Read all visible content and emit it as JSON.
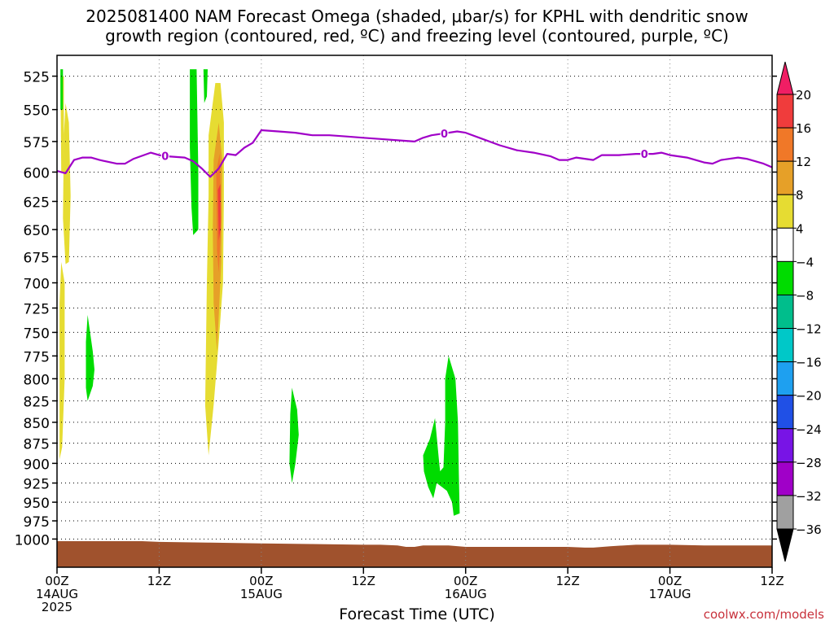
{
  "title_line1": "2025081400 NAM Forecast Omega (shaded, μbar/s) for KPHL with dendritic snow",
  "title_line2": "growth region (contoured, red, ºC) and freezing level (contoured, purple, ºC)",
  "credit": "coolwx.com/models",
  "chart_data": {
    "type": "heatmap",
    "xlabel": "Forecast Time (UTC)",
    "x_range_hours": [
      0,
      84
    ],
    "x_ticks": [
      {
        "hour": 0,
        "label": "00Z",
        "date": "14AUG",
        "year": "2025"
      },
      {
        "hour": 12,
        "label": "12Z"
      },
      {
        "hour": 24,
        "label": "00Z",
        "date": "15AUG"
      },
      {
        "hour": 36,
        "label": "12Z"
      },
      {
        "hour": 48,
        "label": "00Z",
        "date": "16AUG"
      },
      {
        "hour": 60,
        "label": "12Z"
      },
      {
        "hour": 72,
        "label": "00Z",
        "date": "17AUG"
      },
      {
        "hour": 84,
        "label": "12Z"
      }
    ],
    "y_range_mb": [
      1040,
      510
    ],
    "y_ticks": [
      525,
      550,
      575,
      600,
      625,
      650,
      675,
      700,
      725,
      750,
      775,
      800,
      825,
      850,
      875,
      900,
      925,
      950,
      975,
      1000
    ],
    "grid": true,
    "colorbar": {
      "labels": [
        "20",
        "16",
        "12",
        "8",
        "4",
        "−4",
        "−8",
        "−12",
        "−16",
        "−20",
        "−24",
        "−28",
        "−32",
        "−36"
      ],
      "colors": [
        "#f01e64",
        "#f03c3c",
        "#f07828",
        "#e6a028",
        "#e6dc32",
        "#ffffff",
        "#00dc00",
        "#00be8c",
        "#00c8c8",
        "#1ea0f0",
        "#2050e6",
        "#7814e6",
        "#a000c8",
        "#a0a0a0",
        "#000000"
      ]
    },
    "freezing_level": {
      "color": "#a000c8",
      "label": "0",
      "points": [
        [
          0,
          599
        ],
        [
          1,
          601
        ],
        [
          2,
          590
        ],
        [
          3,
          588
        ],
        [
          4,
          588
        ],
        [
          5,
          590
        ],
        [
          7,
          593
        ],
        [
          8,
          593
        ],
        [
          9,
          589
        ],
        [
          11,
          584
        ],
        [
          12,
          586
        ],
        [
          13,
          587
        ],
        [
          15,
          588
        ],
        [
          16,
          591
        ],
        [
          17,
          597
        ],
        [
          18,
          604
        ],
        [
          19,
          597
        ],
        [
          20,
          585
        ],
        [
          21,
          586
        ],
        [
          22,
          580
        ],
        [
          23,
          576
        ],
        [
          24,
          566
        ],
        [
          26,
          567
        ],
        [
          28,
          568
        ],
        [
          30,
          570
        ],
        [
          32,
          570
        ],
        [
          34,
          571
        ],
        [
          36,
          572
        ],
        [
          38,
          573
        ],
        [
          40,
          574
        ],
        [
          42,
          575
        ],
        [
          43,
          572
        ],
        [
          44,
          570
        ],
        [
          46,
          568
        ],
        [
          47,
          567
        ],
        [
          48,
          568
        ],
        [
          50,
          573
        ],
        [
          52,
          578
        ],
        [
          54,
          582
        ],
        [
          56,
          584
        ],
        [
          58,
          587
        ],
        [
          59,
          590
        ],
        [
          60,
          590
        ],
        [
          61,
          588
        ],
        [
          63,
          590
        ],
        [
          64,
          586
        ],
        [
          66,
          586
        ],
        [
          68,
          585
        ],
        [
          69,
          585
        ],
        [
          70,
          585
        ],
        [
          71,
          584
        ],
        [
          72,
          586
        ],
        [
          74,
          588
        ],
        [
          76,
          592
        ],
        [
          77,
          593
        ],
        [
          78,
          590
        ],
        [
          80,
          588
        ],
        [
          81,
          589
        ],
        [
          82,
          591
        ],
        [
          83,
          593
        ],
        [
          84,
          596
        ]
      ]
    },
    "omega_regions": [
      {
        "color": "#e6dc32",
        "points": [
          [
            0.4,
            525
          ],
          [
            0.8,
            525
          ],
          [
            0.8,
            600
          ],
          [
            0.5,
            600
          ]
        ]
      },
      {
        "color": "#e6dc32",
        "points": [
          [
            0.5,
            680
          ],
          [
            0.9,
            700
          ],
          [
            0.9,
            800
          ],
          [
            0.6,
            880
          ],
          [
            0.3,
            895
          ],
          [
            0.3,
            720
          ]
        ]
      },
      {
        "color": "#e6dc32",
        "points": [
          [
            0.8,
            570
          ],
          [
            1.0,
            545
          ],
          [
            1.4,
            560
          ],
          [
            1.6,
            620
          ],
          [
            1.4,
            680
          ],
          [
            1.0,
            682
          ],
          [
            0.7,
            640
          ]
        ]
      },
      {
        "color": "#00dc00",
        "points": [
          [
            0.4,
            520
          ],
          [
            0.7,
            520
          ],
          [
            0.7,
            550
          ],
          [
            0.4,
            550
          ]
        ]
      },
      {
        "color": "#00dc00",
        "points": [
          [
            3.6,
            732
          ],
          [
            4.2,
            770
          ],
          [
            4.4,
            790
          ],
          [
            4.2,
            808
          ],
          [
            3.6,
            825
          ],
          [
            3.4,
            810
          ],
          [
            3.4,
            760
          ]
        ]
      },
      {
        "color": "#00dc00",
        "points": [
          [
            15.6,
            520
          ],
          [
            16.4,
            520
          ],
          [
            16.6,
            600
          ],
          [
            16.6,
            650
          ],
          [
            16.0,
            655
          ],
          [
            15.8,
            630
          ],
          [
            15.6,
            580
          ]
        ]
      },
      {
        "color": "#00dc00",
        "points": [
          [
            17.2,
            520
          ],
          [
            17.7,
            520
          ],
          [
            17.6,
            540
          ],
          [
            17.3,
            545
          ]
        ]
      },
      {
        "color": "#e6dc32",
        "points": [
          [
            17.8,
            570
          ],
          [
            18.6,
            530
          ],
          [
            19.2,
            530
          ],
          [
            19.6,
            560
          ],
          [
            19.6,
            620
          ],
          [
            19.5,
            700
          ],
          [
            19.0,
            760
          ],
          [
            18.4,
            830
          ],
          [
            17.8,
            890
          ],
          [
            17.4,
            830
          ],
          [
            17.6,
            700
          ],
          [
            17.8,
            620
          ]
        ]
      },
      {
        "color": "#e6a028",
        "points": [
          [
            18.4,
            590
          ],
          [
            19.0,
            560
          ],
          [
            19.4,
            590
          ],
          [
            19.3,
            680
          ],
          [
            18.8,
            770
          ],
          [
            18.4,
            720
          ],
          [
            18.3,
            650
          ]
        ]
      },
      {
        "color": "#f07828",
        "points": [
          [
            18.7,
            600
          ],
          [
            19.1,
            585
          ],
          [
            19.3,
            640
          ],
          [
            19.0,
            690
          ],
          [
            18.8,
            670
          ]
        ]
      },
      {
        "color": "#f03c3c",
        "points": [
          [
            18.9,
            615
          ],
          [
            19.2,
            610
          ],
          [
            19.2,
            650
          ],
          [
            19.0,
            660
          ]
        ]
      },
      {
        "color": "#00dc00",
        "points": [
          [
            27.6,
            810
          ],
          [
            28.2,
            835
          ],
          [
            28.4,
            865
          ],
          [
            28.0,
            900
          ],
          [
            27.6,
            925
          ],
          [
            27.3,
            900
          ],
          [
            27.4,
            840
          ]
        ]
      },
      {
        "color": "#00dc00",
        "points": [
          [
            43.0,
            890
          ],
          [
            43.8,
            870
          ],
          [
            44.4,
            845
          ],
          [
            44.9,
            900
          ],
          [
            45.0,
            910
          ],
          [
            45.4,
            905
          ],
          [
            45.6,
            850
          ],
          [
            45.6,
            800
          ],
          [
            46.0,
            775
          ],
          [
            46.8,
            800
          ],
          [
            47.1,
            850
          ],
          [
            47.2,
            915
          ],
          [
            47.3,
            965
          ],
          [
            46.6,
            968
          ],
          [
            46.4,
            950
          ],
          [
            45.8,
            935
          ],
          [
            45.2,
            930
          ],
          [
            44.6,
            925
          ],
          [
            44.2,
            945
          ],
          [
            43.6,
            930
          ],
          [
            43.1,
            910
          ]
        ]
      }
    ],
    "terrain": {
      "color": "#a0522d",
      "top_points": [
        [
          0,
          1003
        ],
        [
          4,
          1003
        ],
        [
          8,
          1003
        ],
        [
          10,
          1003
        ],
        [
          12,
          1004
        ],
        [
          18,
          1005
        ],
        [
          24,
          1006
        ],
        [
          30,
          1007
        ],
        [
          36,
          1008
        ],
        [
          38,
          1008
        ],
        [
          40,
          1009
        ],
        [
          41,
          1011
        ],
        [
          42,
          1011
        ],
        [
          43,
          1009
        ],
        [
          46,
          1009
        ],
        [
          48,
          1011
        ],
        [
          52,
          1011
        ],
        [
          56,
          1011
        ],
        [
          60,
          1011
        ],
        [
          62,
          1012
        ],
        [
          63,
          1012
        ],
        [
          65,
          1010
        ],
        [
          68,
          1008
        ],
        [
          72,
          1008
        ],
        [
          76,
          1009
        ],
        [
          80,
          1009
        ],
        [
          84,
          1009
        ]
      ]
    }
  }
}
